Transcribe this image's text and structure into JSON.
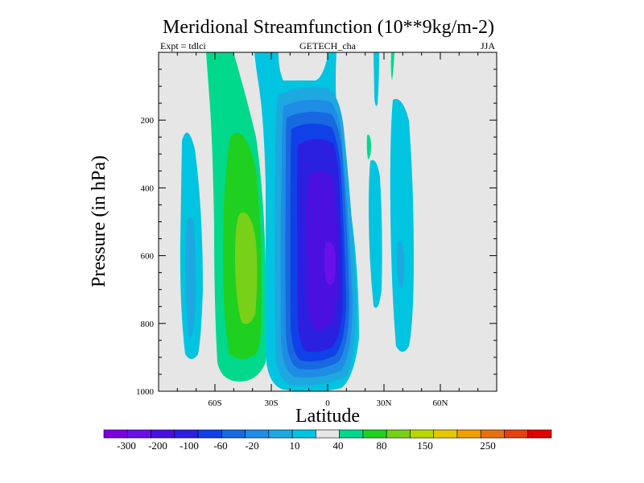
{
  "chart_data": {
    "type": "filled-contour",
    "title": "Meridional Streamfunction (10**9kg/m-2)",
    "subtitle_left": "Expt = tdlci",
    "subtitle_center": "GETECH_cha",
    "subtitle_right": "JJA",
    "xlabel": "Latitude",
    "ylabel": "Pressure (in hPa)",
    "xlim": [
      -90,
      90
    ],
    "ylim": [
      1000,
      0
    ],
    "x_ticks": [
      {
        "value": -60,
        "label": "60S"
      },
      {
        "value": -30,
        "label": "30S"
      },
      {
        "value": 0,
        "label": "0"
      },
      {
        "value": 30,
        "label": "30N"
      },
      {
        "value": 60,
        "label": "60N"
      }
    ],
    "y_ticks": [
      {
        "value": 200,
        "label": "200"
      },
      {
        "value": 400,
        "label": "400"
      },
      {
        "value": 600,
        "label": "600"
      },
      {
        "value": 800,
        "label": "800"
      },
      {
        "value": 1000,
        "label": "1000"
      }
    ],
    "colorbar": {
      "colors": [
        "#7a00dd",
        "#6a10e6",
        "#4a10e0",
        "#2b20e0",
        "#1040e8",
        "#1868e0",
        "#1f8ce6",
        "#1ea8e0",
        "#00c4e0",
        "#e6e6e6",
        "#00d98c",
        "#20d020",
        "#78d018",
        "#b8d800",
        "#e6c800",
        "#eda000",
        "#e87010",
        "#e54010",
        "#e00000"
      ],
      "labels": [
        "-300",
        "-200",
        "-100",
        "-60",
        "-20",
        "10",
        "40",
        "80",
        "150",
        "250"
      ]
    },
    "regions": [
      {
        "name": "southern-hadley-cell",
        "sign": "negative",
        "center_lat": -2,
        "center_p": 600,
        "min_value": -300
      },
      {
        "name": "southern-ferrel-cell",
        "sign": "positive",
        "center_lat": -44,
        "center_p": 650,
        "max_value": 40
      },
      {
        "name": "southern-polar-cell",
        "sign": "negative",
        "center_lat": -73,
        "center_p": 600,
        "min_value": -20
      },
      {
        "name": "northern-cell",
        "sign": "negative",
        "center_lat": 34,
        "center_p": 600,
        "min_value": -20
      }
    ]
  }
}
